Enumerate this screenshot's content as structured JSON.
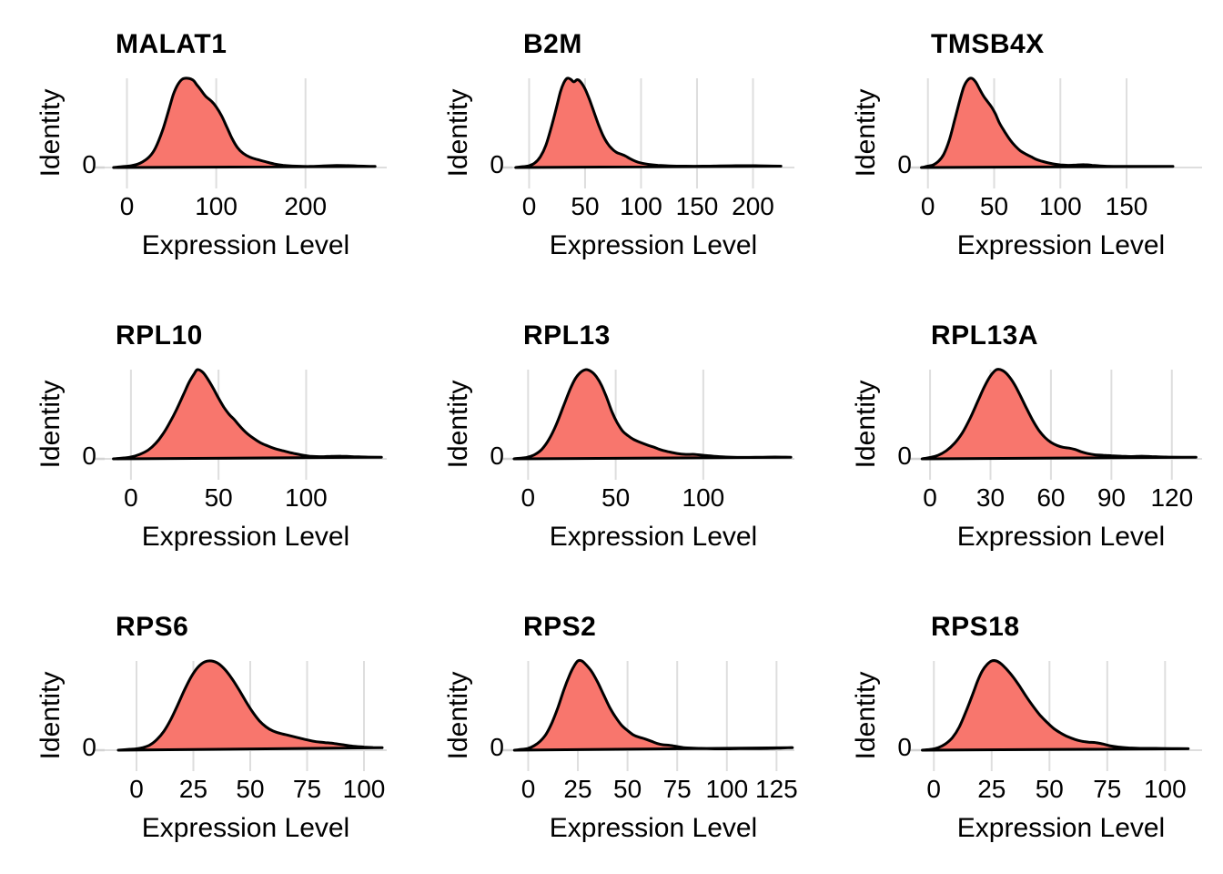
{
  "figure": {
    "title": "",
    "x_axis_label": "Expression Level",
    "y_axis_label": "Identity",
    "y_tick_label": "0",
    "layout": "3x3 grid of ridge/density panels, white background, vertical major gridlines only"
  },
  "colors": {
    "fill": "#F8766D",
    "stroke": "#000000",
    "gridline": "#DEDEDE",
    "tick_mark": "#D3D3D3",
    "text": "#000000",
    "background": "#FFFFFF"
  },
  "chart_data": [
    {
      "type": "area",
      "title": "MALAT1",
      "xlabel": "Expression Level",
      "ylabel": "Identity",
      "y_tick_label": "0",
      "x_ticks": [
        0,
        100,
        200
      ],
      "x_range": [
        -25,
        291
      ],
      "grid": "vertical-major",
      "curve": [
        [
          -15,
          0
        ],
        [
          -5,
          0.01
        ],
        [
          5,
          0.02
        ],
        [
          15,
          0.05
        ],
        [
          25,
          0.12
        ],
        [
          32,
          0.22
        ],
        [
          40,
          0.42
        ],
        [
          47,
          0.65
        ],
        [
          52,
          0.82
        ],
        [
          57,
          0.93
        ],
        [
          62,
          0.99
        ],
        [
          68,
          1.0
        ],
        [
          74,
          0.98
        ],
        [
          78,
          0.93
        ],
        [
          82,
          0.88
        ],
        [
          88,
          0.8
        ],
        [
          95,
          0.74
        ],
        [
          100,
          0.68
        ],
        [
          106,
          0.58
        ],
        [
          112,
          0.45
        ],
        [
          118,
          0.32
        ],
        [
          124,
          0.22
        ],
        [
          130,
          0.16
        ],
        [
          138,
          0.115
        ],
        [
          146,
          0.09
        ],
        [
          155,
          0.065
        ],
        [
          165,
          0.04
        ],
        [
          175,
          0.025
        ],
        [
          190,
          0.015
        ],
        [
          205,
          0.012
        ],
        [
          220,
          0.018
        ],
        [
          235,
          0.022
        ],
        [
          250,
          0.02
        ],
        [
          265,
          0.015
        ],
        [
          278,
          0.012
        ]
      ]
    },
    {
      "type": "area",
      "title": "B2M",
      "xlabel": "Expression Level",
      "ylabel": "Identity",
      "y_tick_label": "0",
      "x_ticks": [
        0,
        50,
        100,
        150,
        200
      ],
      "x_range": [
        -15,
        237
      ],
      "grid": "vertical-major",
      "curve": [
        [
          -12,
          0
        ],
        [
          -5,
          0.01
        ],
        [
          0,
          0.02
        ],
        [
          5,
          0.05
        ],
        [
          10,
          0.12
        ],
        [
          15,
          0.25
        ],
        [
          20,
          0.46
        ],
        [
          25,
          0.7
        ],
        [
          28,
          0.85
        ],
        [
          31,
          0.95
        ],
        [
          34,
          1.0
        ],
        [
          37,
          0.99
        ],
        [
          40,
          0.96
        ],
        [
          43,
          0.985
        ],
        [
          46,
          0.96
        ],
        [
          50,
          0.88
        ],
        [
          54,
          0.76
        ],
        [
          58,
          0.62
        ],
        [
          62,
          0.48
        ],
        [
          66,
          0.36
        ],
        [
          70,
          0.27
        ],
        [
          74,
          0.21
        ],
        [
          78,
          0.17
        ],
        [
          82,
          0.15
        ],
        [
          86,
          0.13
        ],
        [
          90,
          0.1
        ],
        [
          95,
          0.07
        ],
        [
          100,
          0.05
        ],
        [
          107,
          0.035
        ],
        [
          115,
          0.025
        ],
        [
          125,
          0.018
        ],
        [
          140,
          0.015
        ],
        [
          155,
          0.015
        ],
        [
          170,
          0.018
        ],
        [
          185,
          0.02
        ],
        [
          200,
          0.02
        ],
        [
          212,
          0.018
        ],
        [
          225,
          0.015
        ]
      ]
    },
    {
      "type": "area",
      "title": "TMSB4X",
      "xlabel": "Expression Level",
      "ylabel": "Identity",
      "y_tick_label": "0",
      "x_ticks": [
        0,
        50,
        100,
        150
      ],
      "x_range": [
        -6,
        207
      ],
      "grid": "vertical-major",
      "curve": [
        [
          -5,
          0
        ],
        [
          0,
          0.015
        ],
        [
          4,
          0.03
        ],
        [
          8,
          0.07
        ],
        [
          12,
          0.15
        ],
        [
          16,
          0.3
        ],
        [
          20,
          0.52
        ],
        [
          24,
          0.75
        ],
        [
          27,
          0.9
        ],
        [
          30,
          0.98
        ],
        [
          33,
          1.0
        ],
        [
          36,
          0.96
        ],
        [
          39,
          0.88
        ],
        [
          42,
          0.8
        ],
        [
          45,
          0.74
        ],
        [
          48,
          0.68
        ],
        [
          51,
          0.6
        ],
        [
          54,
          0.5
        ],
        [
          58,
          0.4
        ],
        [
          62,
          0.31
        ],
        [
          66,
          0.24
        ],
        [
          70,
          0.185
        ],
        [
          74,
          0.15
        ],
        [
          78,
          0.12
        ],
        [
          82,
          0.09
        ],
        [
          86,
          0.07
        ],
        [
          90,
          0.055
        ],
        [
          95,
          0.04
        ],
        [
          100,
          0.03
        ],
        [
          106,
          0.025
        ],
        [
          112,
          0.028
        ],
        [
          118,
          0.032
        ],
        [
          124,
          0.025
        ],
        [
          130,
          0.018
        ],
        [
          140,
          0.013
        ],
        [
          155,
          0.012
        ],
        [
          170,
          0.012
        ],
        [
          185,
          0.012
        ]
      ]
    },
    {
      "type": "area",
      "title": "RPL10",
      "xlabel": "Expression Level",
      "ylabel": "Identity",
      "y_tick_label": "0",
      "x_ticks": [
        0,
        50,
        100
      ],
      "x_range": [
        -15,
        146
      ],
      "grid": "vertical-major",
      "curve": [
        [
          -10,
          0
        ],
        [
          -4,
          0.01
        ],
        [
          0,
          0.02
        ],
        [
          5,
          0.05
        ],
        [
          10,
          0.1
        ],
        [
          14,
          0.17
        ],
        [
          18,
          0.27
        ],
        [
          22,
          0.4
        ],
        [
          26,
          0.55
        ],
        [
          30,
          0.72
        ],
        [
          33,
          0.85
        ],
        [
          36,
          0.95
        ],
        [
          38,
          1.0
        ],
        [
          41,
          0.97
        ],
        [
          44,
          0.89
        ],
        [
          47,
          0.79
        ],
        [
          50,
          0.68
        ],
        [
          53,
          0.58
        ],
        [
          56,
          0.5
        ],
        [
          59,
          0.44
        ],
        [
          62,
          0.37
        ],
        [
          66,
          0.29
        ],
        [
          70,
          0.23
        ],
        [
          74,
          0.18
        ],
        [
          78,
          0.145
        ],
        [
          82,
          0.115
        ],
        [
          87,
          0.09
        ],
        [
          92,
          0.065
        ],
        [
          97,
          0.045
        ],
        [
          102,
          0.03
        ],
        [
          108,
          0.025
        ],
        [
          114,
          0.028
        ],
        [
          120,
          0.03
        ],
        [
          127,
          0.025
        ],
        [
          134,
          0.02
        ],
        [
          143,
          0.018
        ]
      ]
    },
    {
      "type": "area",
      "title": "RPL13",
      "xlabel": "Expression Level",
      "ylabel": "Identity",
      "y_tick_label": "0",
      "x_ticks": [
        0,
        50,
        100
      ],
      "x_range": [
        -9,
        152
      ],
      "grid": "vertical-major",
      "curve": [
        [
          -8,
          0
        ],
        [
          -3,
          0.01
        ],
        [
          0,
          0.02
        ],
        [
          4,
          0.05
        ],
        [
          8,
          0.11
        ],
        [
          12,
          0.22
        ],
        [
          16,
          0.38
        ],
        [
          20,
          0.58
        ],
        [
          24,
          0.78
        ],
        [
          27,
          0.9
        ],
        [
          30,
          0.97
        ],
        [
          33,
          1.0
        ],
        [
          36,
          0.98
        ],
        [
          39,
          0.92
        ],
        [
          42,
          0.82
        ],
        [
          45,
          0.68
        ],
        [
          48,
          0.52
        ],
        [
          51,
          0.4
        ],
        [
          54,
          0.31
        ],
        [
          57,
          0.26
        ],
        [
          60,
          0.22
        ],
        [
          64,
          0.185
        ],
        [
          68,
          0.155
        ],
        [
          72,
          0.13
        ],
        [
          76,
          0.1
        ],
        [
          80,
          0.08
        ],
        [
          85,
          0.06
        ],
        [
          90,
          0.05
        ],
        [
          95,
          0.05
        ],
        [
          100,
          0.04
        ],
        [
          106,
          0.03
        ],
        [
          113,
          0.02
        ],
        [
          122,
          0.016
        ],
        [
          132,
          0.018
        ],
        [
          141,
          0.02
        ],
        [
          150,
          0.018
        ]
      ]
    },
    {
      "type": "area",
      "title": "RPL13A",
      "xlabel": "Expression Level",
      "ylabel": "Identity",
      "y_tick_label": "0",
      "x_ticks": [
        0,
        30,
        60,
        90,
        120
      ],
      "x_range": [
        -5,
        135
      ],
      "grid": "vertical-major",
      "curve": [
        [
          -4,
          0
        ],
        [
          0,
          0.015
        ],
        [
          4,
          0.04
        ],
        [
          8,
          0.09
        ],
        [
          12,
          0.17
        ],
        [
          16,
          0.29
        ],
        [
          20,
          0.46
        ],
        [
          24,
          0.66
        ],
        [
          27,
          0.81
        ],
        [
          30,
          0.93
        ],
        [
          33,
          1.0
        ],
        [
          36,
          0.99
        ],
        [
          39,
          0.93
        ],
        [
          42,
          0.83
        ],
        [
          45,
          0.7
        ],
        [
          48,
          0.56
        ],
        [
          51,
          0.43
        ],
        [
          54,
          0.32
        ],
        [
          57,
          0.24
        ],
        [
          60,
          0.185
        ],
        [
          63,
          0.15
        ],
        [
          66,
          0.13
        ],
        [
          69,
          0.12
        ],
        [
          72,
          0.105
        ],
        [
          75,
          0.08
        ],
        [
          78,
          0.06
        ],
        [
          82,
          0.045
        ],
        [
          86,
          0.04
        ],
        [
          90,
          0.035
        ],
        [
          95,
          0.03
        ],
        [
          100,
          0.026
        ],
        [
          105,
          0.03
        ],
        [
          110,
          0.026
        ],
        [
          117,
          0.02
        ],
        [
          125,
          0.018
        ],
        [
          132,
          0.018
        ]
      ]
    },
    {
      "type": "area",
      "title": "RPS6",
      "xlabel": "Expression Level",
      "ylabel": "Identity",
      "y_tick_label": "0",
      "x_ticks": [
        0,
        25,
        50,
        75,
        100
      ],
      "x_range": [
        -14,
        110
      ],
      "grid": "vertical-major",
      "curve": [
        [
          -8,
          0
        ],
        [
          -3,
          0.01
        ],
        [
          0,
          0.015
        ],
        [
          3,
          0.03
        ],
        [
          6,
          0.06
        ],
        [
          9,
          0.12
        ],
        [
          12,
          0.21
        ],
        [
          15,
          0.34
        ],
        [
          18,
          0.5
        ],
        [
          21,
          0.67
        ],
        [
          24,
          0.82
        ],
        [
          27,
          0.93
        ],
        [
          30,
          0.99
        ],
        [
          33,
          1.0
        ],
        [
          36,
          0.97
        ],
        [
          39,
          0.9
        ],
        [
          42,
          0.8
        ],
        [
          45,
          0.68
        ],
        [
          48,
          0.55
        ],
        [
          51,
          0.43
        ],
        [
          54,
          0.33
        ],
        [
          57,
          0.26
        ],
        [
          60,
          0.215
        ],
        [
          63,
          0.19
        ],
        [
          67,
          0.165
        ],
        [
          71,
          0.14
        ],
        [
          75,
          0.115
        ],
        [
          79,
          0.095
        ],
        [
          83,
          0.085
        ],
        [
          87,
          0.075
        ],
        [
          91,
          0.06
        ],
        [
          95,
          0.045
        ],
        [
          100,
          0.035
        ],
        [
          104,
          0.03
        ],
        [
          108,
          0.028
        ]
      ]
    },
    {
      "type": "area",
      "title": "RPS2",
      "xlabel": "Expression Level",
      "ylabel": "Identity",
      "y_tick_label": "0",
      "x_ticks": [
        0,
        25,
        50,
        75,
        100,
        125
      ],
      "x_range": [
        -8,
        134
      ],
      "grid": "vertical-major",
      "curve": [
        [
          -7,
          0
        ],
        [
          -3,
          0.01
        ],
        [
          0,
          0.02
        ],
        [
          3,
          0.05
        ],
        [
          6,
          0.1
        ],
        [
          9,
          0.18
        ],
        [
          12,
          0.31
        ],
        [
          15,
          0.48
        ],
        [
          18,
          0.68
        ],
        [
          21,
          0.85
        ],
        [
          23,
          0.94
        ],
        [
          25,
          1.0
        ],
        [
          27,
          1.0
        ],
        [
          29,
          0.96
        ],
        [
          32,
          0.88
        ],
        [
          35,
          0.76
        ],
        [
          38,
          0.62
        ],
        [
          41,
          0.48
        ],
        [
          44,
          0.37
        ],
        [
          47,
          0.28
        ],
        [
          50,
          0.22
        ],
        [
          53,
          0.17
        ],
        [
          56,
          0.145
        ],
        [
          59,
          0.125
        ],
        [
          62,
          0.1
        ],
        [
          65,
          0.075
        ],
        [
          68,
          0.06
        ],
        [
          71,
          0.055
        ],
        [
          74,
          0.045
        ],
        [
          78,
          0.03
        ],
        [
          83,
          0.022
        ],
        [
          90,
          0.018
        ],
        [
          98,
          0.015
        ],
        [
          106,
          0.018
        ],
        [
          114,
          0.018
        ],
        [
          122,
          0.02
        ],
        [
          128,
          0.025
        ],
        [
          133,
          0.028
        ]
      ]
    },
    {
      "type": "area",
      "title": "RPS18",
      "xlabel": "Expression Level",
      "ylabel": "Identity",
      "y_tick_label": "0",
      "x_ticks": [
        0,
        25,
        50,
        75,
        100
      ],
      "x_range": [
        -6,
        116
      ],
      "grid": "vertical-major",
      "curve": [
        [
          -5,
          0
        ],
        [
          -1,
          0.01
        ],
        [
          2,
          0.03
        ],
        [
          5,
          0.07
        ],
        [
          8,
          0.14
        ],
        [
          11,
          0.26
        ],
        [
          14,
          0.44
        ],
        [
          17,
          0.64
        ],
        [
          19,
          0.78
        ],
        [
          21,
          0.89
        ],
        [
          23,
          0.96
        ],
        [
          25,
          1.0
        ],
        [
          27,
          1.0
        ],
        [
          29,
          0.97
        ],
        [
          31,
          0.92
        ],
        [
          34,
          0.83
        ],
        [
          37,
          0.72
        ],
        [
          40,
          0.6
        ],
        [
          43,
          0.49
        ],
        [
          46,
          0.39
        ],
        [
          49,
          0.31
        ],
        [
          52,
          0.24
        ],
        [
          55,
          0.19
        ],
        [
          58,
          0.15
        ],
        [
          61,
          0.12
        ],
        [
          64,
          0.1
        ],
        [
          67,
          0.09
        ],
        [
          70,
          0.085
        ],
        [
          73,
          0.07
        ],
        [
          76,
          0.05
        ],
        [
          80,
          0.035
        ],
        [
          85,
          0.025
        ],
        [
          90,
          0.02
        ],
        [
          96,
          0.02
        ],
        [
          103,
          0.018
        ],
        [
          110,
          0.016
        ]
      ]
    }
  ]
}
